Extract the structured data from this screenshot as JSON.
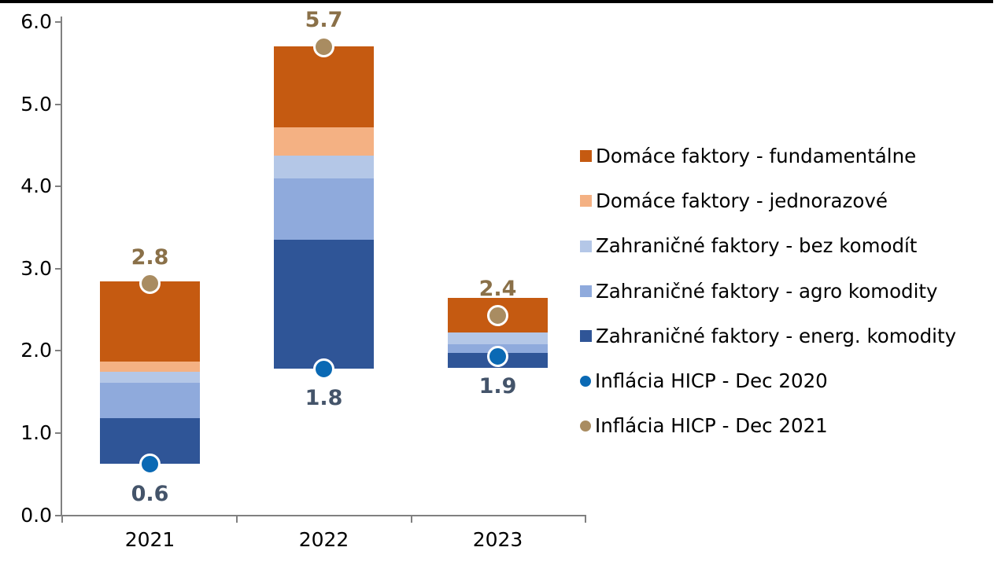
{
  "page": {
    "background": "#FFFFFF",
    "top_border_color": "#000000"
  },
  "chart_data": {
    "type": "bar",
    "variant": "stacked-floating-decomposition",
    "title": "",
    "xlabel": "",
    "ylabel": "",
    "grid": false,
    "legend_position": "right",
    "axis_color": "#808080",
    "categories": [
      "2021",
      "2022",
      "2023"
    ],
    "ylim": [
      0,
      6
    ],
    "ytick_labels": [
      "0.0",
      "1.0",
      "2.0",
      "3.0",
      "4.0",
      "5.0",
      "6.0"
    ],
    "ytick_values": [
      0,
      1,
      2,
      3,
      4,
      5,
      6
    ],
    "bar_base_values": [
      0.63,
      1.78,
      1.79
    ],
    "series": [
      {
        "name": "Zahraničné faktory - energ. komodity",
        "color": "#2F5597",
        "values": [
          0.55,
          1.57,
          0.18
        ]
      },
      {
        "name": "Zahraničné faktory - agro komodity",
        "color": "#8FAADC",
        "values": [
          0.43,
          0.75,
          0.11
        ]
      },
      {
        "name": "Zahraničné faktory - bez komodít",
        "color": "#B4C7E7",
        "values": [
          0.13,
          0.27,
          0.14
        ]
      },
      {
        "name": "Domáce faktory - jednorazové",
        "color": "#F4B183",
        "values": [
          0.13,
          0.35,
          0.0
        ]
      },
      {
        "name": "Domáce faktory - fundamentálne",
        "color": "#C55A11",
        "values": [
          0.97,
          0.98,
          0.42
        ]
      }
    ],
    "markers": [
      {
        "name": "Inflácia HICP - Dec 2020",
        "color": "#0A69B4",
        "values": [
          0.62,
          1.78,
          1.93
        ],
        "labels": [
          "0.6",
          "1.8",
          "1.9"
        ],
        "label_color": "#44546A",
        "label_side": "below"
      },
      {
        "name": "Inflácia HICP - Dec 2021",
        "color": "#A98C61",
        "values": [
          2.82,
          5.7,
          2.43
        ],
        "labels": [
          "2.8",
          "5.7",
          "2.4"
        ],
        "label_color": "#8A7048",
        "label_side": "above"
      }
    ]
  },
  "legend": {
    "items": [
      {
        "label": "Domáce faktory - fundamentálne",
        "shape": "square",
        "color": "#C55A11"
      },
      {
        "label": "Domáce faktory - jednorazové",
        "shape": "square",
        "color": "#F4B183"
      },
      {
        "label": "Zahraničné faktory - bez komodít",
        "shape": "square",
        "color": "#B4C7E7"
      },
      {
        "label": "Zahraničné faktory - agro komodity",
        "shape": "square",
        "color": "#8FAADC"
      },
      {
        "label": "Zahraničné faktory - energ. komodity",
        "shape": "square",
        "color": "#2F5597"
      },
      {
        "label": "Inflácia HICP - Dec 2020",
        "shape": "circle",
        "color": "#0A69B4"
      },
      {
        "label": "Inflácia HICP - Dec 2021",
        "shape": "circle",
        "color": "#A98C61"
      }
    ]
  }
}
